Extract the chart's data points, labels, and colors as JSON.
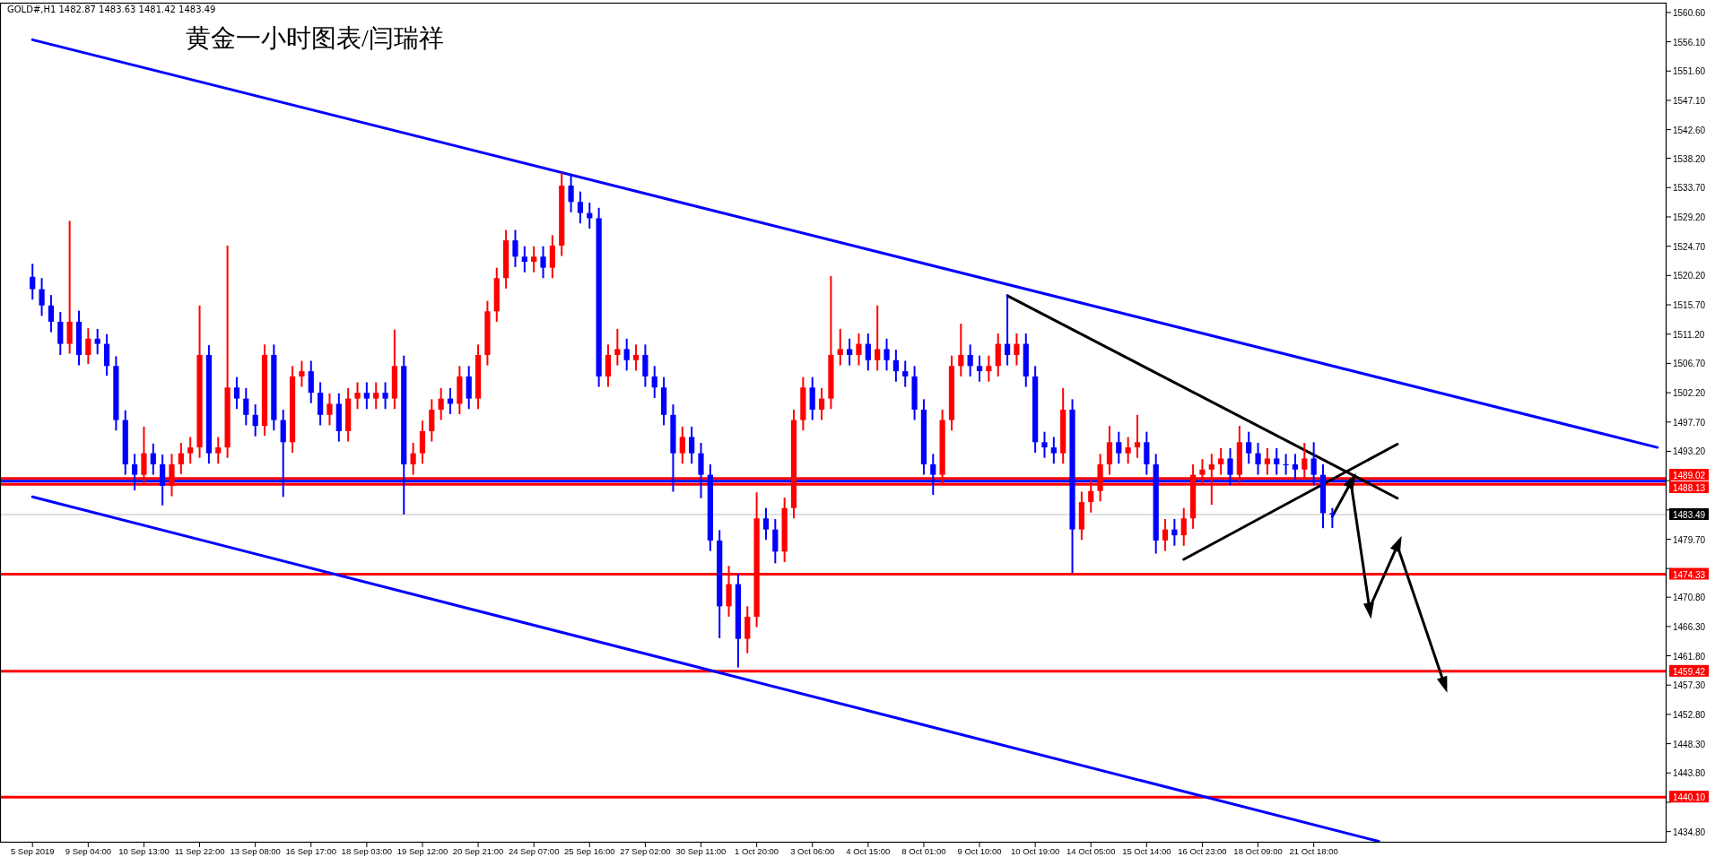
{
  "chart_data": {
    "type": "candlestick",
    "title": "黄金一小时图表/闫瑞祥",
    "annotations": [
      "GOLD#,H1  1482.87 1483.63 1481.42 1483.49"
    ],
    "categories": [
      "5 Sep 2019",
      null,
      null,
      null,
      null,
      null,
      "9 Sep 04:00",
      null,
      null,
      null,
      null,
      null,
      "10 Sep 13:00",
      null,
      null,
      null,
      null,
      null,
      "11 Sep 22:00",
      null,
      null,
      null,
      null,
      null,
      "13 Sep 08:00",
      null,
      null,
      null,
      null,
      null,
      "16 Sep 17:00",
      null,
      null,
      null,
      null,
      null,
      "18 Sep 03:00",
      null,
      null,
      null,
      null,
      null,
      "19 Sep 12:00",
      null,
      null,
      null,
      null,
      null,
      "20 Sep 21:00",
      null,
      null,
      null,
      null,
      null,
      "24 Sep 07:00",
      null,
      null,
      null,
      null,
      null,
      "25 Sep 16:00",
      null,
      null,
      null,
      null,
      null,
      "27 Sep 02:00",
      null,
      null,
      null,
      null,
      null,
      "30 Sep 11:00",
      null,
      null,
      null,
      null,
      null,
      "1 Oct 20:00",
      null,
      null,
      null,
      null,
      null,
      "3 Oct 06:00",
      null,
      null,
      null,
      null,
      null,
      "4 Oct 15:00",
      null,
      null,
      null,
      null,
      null,
      "8 Oct 01:00",
      null,
      null,
      null,
      null,
      null,
      "9 Oct 10:00",
      null,
      null,
      null,
      null,
      null,
      "10 Oct 19:00",
      null,
      null,
      null,
      null,
      null,
      "14 Oct 05:00",
      null,
      null,
      null,
      null,
      null,
      "15 Oct 14:00",
      null,
      null,
      null,
      null,
      null,
      "16 Oct 23:00",
      null,
      null,
      null,
      null,
      null,
      "18 Oct 09:00",
      null,
      null,
      null,
      null,
      null,
      "21 Oct 18:00",
      null,
      null,
      null,
      null,
      null,
      null,
      null,
      null,
      null,
      null,
      null,
      null,
      null,
      null,
      null,
      null,
      null,
      null,
      null,
      null,
      null,
      null,
      null,
      null,
      null,
      null,
      null,
      null,
      null,
      null,
      null,
      null,
      null,
      null,
      null,
      null,
      null
    ],
    "ylim": [
      1433.1,
      1562.1
    ],
    "yticks": [
      {
        "value": 1560.6,
        "label": "1560.60"
      },
      {
        "value": 1556.1,
        "label": "1556.10"
      },
      {
        "value": 1551.6,
        "label": "1551.60"
      },
      {
        "value": 1547.1,
        "label": "1547.10"
      },
      {
        "value": 1542.6,
        "label": "1542.60"
      },
      {
        "value": 1538.2,
        "label": "1538.20"
      },
      {
        "value": 1533.7,
        "label": "1533.70"
      },
      {
        "value": 1529.2,
        "label": "1529.20"
      },
      {
        "value": 1524.7,
        "label": "1524.70"
      },
      {
        "value": 1520.2,
        "label": "1520.20"
      },
      {
        "value": 1515.7,
        "label": "1515.70"
      },
      {
        "value": 1511.2,
        "label": "1511.20"
      },
      {
        "value": 1506.7,
        "label": "1506.70"
      },
      {
        "value": 1502.2,
        "label": "1502.20"
      },
      {
        "value": 1497.7,
        "label": "1497.70"
      },
      {
        "value": 1493.2,
        "label": "1493.20"
      },
      {
        "value": 1488.7,
        "label": null
      },
      {
        "value": 1484.2,
        "label": null
      },
      {
        "value": 1479.7,
        "label": "1479.70"
      },
      {
        "value": 1475.2,
        "label": null
      },
      {
        "value": 1470.8,
        "label": "1470.80"
      },
      {
        "value": 1466.3,
        "label": "1466.30"
      },
      {
        "value": 1461.8,
        "label": "1461.80"
      },
      {
        "value": 1457.3,
        "label": "1457.30"
      },
      {
        "value": 1452.8,
        "label": "1452.80"
      },
      {
        "value": 1448.3,
        "label": "1448.30"
      },
      {
        "value": 1443.8,
        "label": "1443.80"
      },
      {
        "value": 1439.3,
        "label": null
      },
      {
        "value": 1434.8,
        "label": "1434.80"
      }
    ],
    "grid": false,
    "ref_lines": [
      {
        "axis": "y",
        "value": 1489.02,
        "label": "1489.02",
        "color": "#ff0000"
      },
      {
        "axis": "y",
        "value": 1488.6,
        "color": "#0000ff"
      },
      {
        "axis": "y",
        "value": 1488.13,
        "label": "1488.13",
        "color": "#ff0000"
      },
      {
        "axis": "y",
        "value": 1483.49,
        "label": "1483.49",
        "color": "#c0c0c0"
      },
      {
        "axis": "y",
        "value": 1474.33,
        "label": "1474.33",
        "color": "#ff0000"
      },
      {
        "axis": "y",
        "value": 1459.42,
        "label": "1459.42",
        "color": "#ff0000"
      },
      {
        "axis": "y",
        "value": 1440.1,
        "label": "1440.10",
        "color": "#ff0000"
      }
    ],
    "series": [
      {
        "type": "line",
        "color": "#0000ff",
        "values": [
          1556.4,
          null,
          null,
          null,
          null,
          null,
          null,
          null,
          null,
          null,
          null,
          null,
          null,
          null,
          null,
          null,
          null,
          null,
          null,
          null,
          null,
          null,
          null,
          null,
          null,
          null,
          null,
          null,
          null,
          null,
          null,
          null,
          null,
          null,
          null,
          null,
          null,
          null,
          null,
          null,
          null,
          null,
          null,
          null,
          null,
          null,
          null,
          null,
          null,
          null,
          null,
          null,
          null,
          null,
          null,
          null,
          null,
          null,
          null,
          null,
          null,
          null,
          null,
          null,
          null,
          null,
          null,
          null,
          null,
          null,
          null,
          null,
          null,
          null,
          null,
          null,
          null,
          null,
          null,
          null,
          null,
          null,
          null,
          null,
          null,
          null,
          null,
          null,
          null,
          null,
          null,
          null,
          null,
          null,
          null,
          null,
          null,
          null,
          null,
          null,
          null,
          null,
          null,
          null,
          null,
          null,
          null,
          null,
          null,
          null,
          null,
          null,
          null,
          null,
          null,
          null,
          null,
          null,
          null,
          null,
          null,
          null,
          null,
          null,
          null,
          null,
          null,
          null,
          null,
          null,
          null,
          null,
          null,
          null,
          null,
          null,
          null,
          null,
          null,
          null,
          null,
          null,
          null,
          null,
          null,
          null,
          null,
          null,
          null,
          null,
          null,
          null,
          null,
          null,
          null,
          null,
          null,
          null,
          null,
          null,
          null,
          null,
          null,
          null,
          null,
          null,
          null,
          null,
          null,
          null,
          null,
          null,
          null,
          null,
          null,
          1493.8
        ]
      },
      {
        "type": "line",
        "color": "#0000ff",
        "values": [
          1486.2,
          null,
          null,
          null,
          null,
          null,
          null,
          null,
          null,
          null,
          null,
          null,
          null,
          null,
          null,
          null,
          null,
          null,
          null,
          null,
          null,
          null,
          null,
          null,
          null,
          null,
          null,
          null,
          null,
          null,
          null,
          null,
          null,
          null,
          null,
          null,
          null,
          null,
          null,
          null,
          null,
          null,
          null,
          null,
          null,
          null,
          null,
          null,
          null,
          null,
          null,
          null,
          null,
          null,
          null,
          null,
          null,
          null,
          null,
          null,
          null,
          null,
          null,
          null,
          null,
          null,
          null,
          null,
          null,
          null,
          null,
          null,
          null,
          null,
          null,
          null,
          null,
          null,
          null,
          null,
          null,
          null,
          null,
          null,
          null,
          null,
          null,
          null,
          null,
          null,
          null,
          null,
          null,
          null,
          null,
          null,
          null,
          null,
          null,
          null,
          null,
          null,
          null,
          null,
          null,
          null,
          null,
          null,
          null,
          null,
          null,
          null,
          null,
          null,
          null,
          null,
          null,
          null,
          null,
          null,
          null,
          null,
          null,
          null,
          null,
          null,
          null,
          null,
          null,
          null,
          null,
          null,
          null,
          null,
          null,
          null,
          null,
          null,
          null,
          null,
          null,
          null,
          null,
          null,
          null,
          1433.3,
          null,
          null,
          null,
          null,
          null,
          null,
          null,
          null,
          null,
          null,
          null,
          null,
          null,
          null,
          null,
          null,
          null,
          null,
          null,
          null,
          null,
          null,
          null,
          null,
          null,
          null,
          null,
          null,
          null,
          null
        ]
      },
      {
        "type": "line",
        "color": "#000000",
        "values": [
          null,
          null,
          null,
          null,
          null,
          null,
          null,
          null,
          null,
          null,
          null,
          null,
          null,
          null,
          null,
          null,
          null,
          null,
          null,
          null,
          null,
          null,
          null,
          null,
          null,
          null,
          null,
          null,
          null,
          null,
          null,
          null,
          null,
          null,
          null,
          null,
          null,
          null,
          null,
          null,
          null,
          null,
          null,
          null,
          null,
          null,
          null,
          null,
          null,
          null,
          null,
          null,
          null,
          null,
          null,
          null,
          null,
          null,
          null,
          null,
          null,
          null,
          null,
          null,
          null,
          null,
          null,
          null,
          null,
          null,
          null,
          null,
          null,
          null,
          null,
          null,
          null,
          null,
          null,
          null,
          null,
          null,
          null,
          null,
          null,
          null,
          null,
          null,
          null,
          null,
          null,
          null,
          null,
          null,
          null,
          null,
          null,
          null,
          null,
          null,
          null,
          null,
          null,
          null,
          null,
          1517.1,
          null,
          null,
          null,
          null,
          null,
          null,
          null,
          null,
          null,
          null,
          null,
          null,
          null,
          null,
          null,
          null,
          null,
          null,
          null,
          null,
          null,
          null,
          null,
          null,
          null,
          null,
          null,
          null,
          null,
          null,
          null,
          null,
          null,
          null,
          null,
          null,
          null,
          null,
          null,
          null,
          null,
          1486.0,
          null,
          null,
          null,
          null,
          null,
          null,
          null,
          null,
          null,
          null,
          null,
          null,
          null,
          null,
          null,
          null,
          null,
          null,
          null,
          null,
          null,
          null,
          null,
          null,
          null,
          null,
          null,
          null
        ]
      },
      {
        "type": "line",
        "color": "#000000",
        "values": [
          null,
          null,
          null,
          null,
          null,
          null,
          null,
          null,
          null,
          null,
          null,
          null,
          null,
          null,
          null,
          null,
          null,
          null,
          null,
          null,
          null,
          null,
          null,
          null,
          null,
          null,
          null,
          null,
          null,
          null,
          null,
          null,
          null,
          null,
          null,
          null,
          null,
          null,
          null,
          null,
          null,
          null,
          null,
          null,
          null,
          null,
          null,
          null,
          null,
          null,
          null,
          null,
          null,
          null,
          null,
          null,
          null,
          null,
          null,
          null,
          null,
          null,
          null,
          null,
          null,
          null,
          null,
          null,
          null,
          null,
          null,
          null,
          null,
          null,
          null,
          null,
          null,
          null,
          null,
          null,
          null,
          null,
          null,
          null,
          null,
          null,
          null,
          null,
          null,
          null,
          null,
          null,
          null,
          null,
          null,
          null,
          null,
          null,
          null,
          null,
          null,
          null,
          null,
          null,
          null,
          null,
          null,
          null,
          null,
          null,
          null,
          null,
          null,
          null,
          null,
          null,
          null,
          null,
          null,
          null,
          null,
          null,
          null,
          null,
          1476.6,
          null,
          null,
          null,
          null,
          null,
          null,
          null,
          null,
          null,
          null,
          null,
          null,
          null,
          null,
          null,
          null,
          null,
          null,
          null,
          null,
          null,
          null,
          1494.3,
          null,
          null,
          null,
          null,
          null,
          null,
          null,
          null,
          null,
          null,
          null,
          null,
          null,
          null,
          null,
          null,
          null,
          null,
          null,
          null,
          null,
          null,
          null,
          null,
          null,
          null,
          null,
          null
        ]
      },
      {
        "type": "line",
        "color": "#000000",
        "marker": "triangle",
        "values": [
          null,
          null,
          null,
          null,
          null,
          null,
          null,
          null,
          null,
          null,
          null,
          null,
          null,
          null,
          null,
          null,
          null,
          null,
          null,
          null,
          null,
          null,
          null,
          null,
          null,
          null,
          null,
          null,
          null,
          null,
          null,
          null,
          null,
          null,
          null,
          null,
          null,
          null,
          null,
          null,
          null,
          null,
          null,
          null,
          null,
          null,
          null,
          null,
          null,
          null,
          null,
          null,
          null,
          null,
          null,
          null,
          null,
          null,
          null,
          null,
          null,
          null,
          null,
          null,
          null,
          null,
          null,
          null,
          null,
          null,
          null,
          null,
          null,
          null,
          null,
          null,
          null,
          null,
          null,
          null,
          null,
          null,
          null,
          null,
          null,
          null,
          null,
          null,
          null,
          null,
          null,
          null,
          null,
          null,
          null,
          null,
          null,
          null,
          null,
          null,
          null,
          null,
          null,
          null,
          null,
          null,
          null,
          null,
          null,
          null,
          null,
          null,
          null,
          null,
          null,
          null,
          null,
          null,
          null,
          null,
          null,
          null,
          null,
          null,
          null,
          null,
          null,
          null,
          null,
          null,
          null,
          null,
          null,
          null,
          null,
          null,
          null,
          null,
          null,
          null,
          1483.2,
          null,
          1488.4,
          null,
          1469.1,
          null,
          null,
          1478.7,
          null,
          null,
          null,
          null,
          1457.7,
          null,
          null,
          null,
          null,
          null,
          null,
          null,
          null,
          null,
          null,
          null,
          null,
          null,
          null,
          null,
          null,
          null,
          null,
          null,
          null,
          null,
          null,
          null
        ]
      }
    ],
    "ohlc": [
      [
        1520.0,
        1522.0,
        1516.5,
        1518.1
      ],
      [
        1518.1,
        1519.8,
        1514.0,
        1515.6
      ],
      [
        1515.6,
        1517.2,
        1511.5,
        1513.1
      ],
      [
        1513.1,
        1514.6,
        1508.0,
        1509.7
      ],
      [
        1509.7,
        1528.6,
        1508.2,
        1513.1
      ],
      [
        1513.1,
        1514.8,
        1506.4,
        1508.0
      ],
      [
        1508.0,
        1512.1,
        1506.6,
        1510.5
      ],
      [
        1510.5,
        1512.0,
        1508.1,
        1509.7
      ],
      [
        1509.7,
        1511.2,
        1504.8,
        1506.3
      ],
      [
        1506.3,
        1507.8,
        1496.4,
        1498.0
      ],
      [
        1498.0,
        1499.5,
        1489.6,
        1491.2
      ],
      [
        1491.2,
        1492.8,
        1487.2,
        1489.6
      ],
      [
        1489.6,
        1497.0,
        1488.0,
        1492.9
      ],
      [
        1492.9,
        1494.4,
        1489.6,
        1491.2
      ],
      [
        1491.2,
        1492.7,
        1484.9,
        1487.9
      ],
      [
        1487.9,
        1492.8,
        1486.3,
        1491.2
      ],
      [
        1491.2,
        1494.5,
        1489.7,
        1492.9
      ],
      [
        1492.9,
        1495.4,
        1491.3,
        1493.8
      ],
      [
        1493.8,
        1515.6,
        1492.2,
        1508.0
      ],
      [
        1508.0,
        1509.5,
        1491.3,
        1492.9
      ],
      [
        1492.9,
        1495.4,
        1491.3,
        1493.8
      ],
      [
        1493.8,
        1524.8,
        1492.2,
        1503.0
      ],
      [
        1503.0,
        1504.6,
        1499.7,
        1501.3
      ],
      [
        1501.3,
        1502.9,
        1497.2,
        1498.8
      ],
      [
        1498.8,
        1500.4,
        1495.5,
        1497.1
      ],
      [
        1497.1,
        1509.6,
        1495.6,
        1508.0
      ],
      [
        1508.0,
        1509.6,
        1496.4,
        1498.0
      ],
      [
        1498.0,
        1499.6,
        1486.2,
        1494.6
      ],
      [
        1494.6,
        1506.3,
        1493.0,
        1504.7
      ],
      [
        1504.7,
        1507.1,
        1503.1,
        1505.5
      ],
      [
        1505.5,
        1507.1,
        1500.6,
        1502.2
      ],
      [
        1502.2,
        1503.8,
        1497.2,
        1498.8
      ],
      [
        1498.8,
        1502.1,
        1497.2,
        1500.5
      ],
      [
        1500.5,
        1502.1,
        1494.7,
        1496.3
      ],
      [
        1496.3,
        1502.9,
        1494.7,
        1501.3
      ],
      [
        1501.3,
        1503.8,
        1499.7,
        1502.2
      ],
      [
        1502.2,
        1503.8,
        1499.7,
        1501.3
      ],
      [
        1501.3,
        1503.8,
        1499.7,
        1502.2
      ],
      [
        1502.2,
        1503.8,
        1499.7,
        1501.3
      ],
      [
        1501.3,
        1511.9,
        1499.7,
        1506.3
      ],
      [
        1506.3,
        1507.9,
        1483.5,
        1491.2
      ],
      [
        1491.2,
        1494.5,
        1489.6,
        1492.9
      ],
      [
        1492.9,
        1497.9,
        1491.3,
        1496.3
      ],
      [
        1496.3,
        1501.2,
        1494.7,
        1499.6
      ],
      [
        1499.6,
        1502.9,
        1498.0,
        1501.3
      ],
      [
        1501.3,
        1502.9,
        1498.9,
        1500.5
      ],
      [
        1500.5,
        1506.3,
        1498.9,
        1504.7
      ],
      [
        1504.7,
        1506.3,
        1499.7,
        1501.3
      ],
      [
        1501.3,
        1509.6,
        1499.7,
        1508.0
      ],
      [
        1508.0,
        1516.3,
        1506.4,
        1514.7
      ],
      [
        1514.7,
        1521.4,
        1513.1,
        1519.8
      ],
      [
        1519.8,
        1527.2,
        1518.2,
        1525.6
      ],
      [
        1525.6,
        1527.2,
        1521.5,
        1523.1
      ],
      [
        1523.1,
        1524.7,
        1520.7,
        1522.3
      ],
      [
        1522.3,
        1524.7,
        1520.7,
        1523.1
      ],
      [
        1523.1,
        1524.7,
        1519.8,
        1521.4
      ],
      [
        1521.4,
        1526.4,
        1519.8,
        1524.8
      ],
      [
        1524.8,
        1536.0,
        1523.2,
        1534.0
      ],
      [
        1534.0,
        1535.6,
        1529.9,
        1531.5
      ],
      [
        1531.5,
        1533.1,
        1528.2,
        1529.8
      ],
      [
        1529.8,
        1531.4,
        1527.4,
        1529.0
      ],
      [
        1529.0,
        1530.6,
        1503.1,
        1504.7
      ],
      [
        1504.7,
        1509.6,
        1503.1,
        1508.0
      ],
      [
        1508.0,
        1512.0,
        1506.4,
        1508.9
      ],
      [
        1508.9,
        1510.5,
        1505.6,
        1507.2
      ],
      [
        1507.2,
        1509.6,
        1505.6,
        1508.0
      ],
      [
        1508.0,
        1509.6,
        1503.1,
        1504.7
      ],
      [
        1504.7,
        1506.3,
        1501.4,
        1503.0
      ],
      [
        1503.0,
        1504.6,
        1497.2,
        1498.8
      ],
      [
        1498.8,
        1500.4,
        1487.0,
        1492.9
      ],
      [
        1492.9,
        1497.0,
        1491.3,
        1495.4
      ],
      [
        1495.4,
        1497.0,
        1491.3,
        1492.9
      ],
      [
        1492.9,
        1494.5,
        1486.0,
        1489.6
      ],
      [
        1489.6,
        1491.2,
        1477.9,
        1479.5
      ],
      [
        1479.5,
        1481.1,
        1464.5,
        1469.4
      ],
      [
        1469.4,
        1475.6,
        1467.8,
        1472.8
      ],
      [
        1472.8,
        1474.4,
        1460.0,
        1464.4
      ],
      [
        1464.4,
        1469.4,
        1462.2,
        1467.8
      ],
      [
        1467.8,
        1486.9,
        1466.2,
        1482.9
      ],
      [
        1482.9,
        1484.5,
        1479.6,
        1481.2
      ],
      [
        1481.2,
        1482.8,
        1476.0,
        1477.8
      ],
      [
        1477.8,
        1486.1,
        1476.2,
        1484.5
      ],
      [
        1484.5,
        1499.6,
        1482.9,
        1498.0
      ],
      [
        1498.0,
        1504.6,
        1496.4,
        1503.0
      ],
      [
        1503.0,
        1504.6,
        1498.0,
        1499.6
      ],
      [
        1499.6,
        1502.9,
        1498.0,
        1501.3
      ],
      [
        1501.3,
        1520.1,
        1499.7,
        1508.0
      ],
      [
        1508.0,
        1512.0,
        1506.4,
        1508.9
      ],
      [
        1508.9,
        1510.5,
        1506.4,
        1508.0
      ],
      [
        1508.0,
        1511.3,
        1506.4,
        1509.7
      ],
      [
        1509.7,
        1511.3,
        1505.6,
        1507.2
      ],
      [
        1507.2,
        1515.6,
        1505.6,
        1508.9
      ],
      [
        1508.9,
        1510.5,
        1505.6,
        1507.2
      ],
      [
        1507.2,
        1508.8,
        1503.9,
        1505.5
      ],
      [
        1505.5,
        1507.1,
        1503.1,
        1504.7
      ],
      [
        1504.7,
        1506.3,
        1498.0,
        1499.6
      ],
      [
        1499.6,
        1501.2,
        1489.6,
        1491.2
      ],
      [
        1491.2,
        1492.8,
        1486.5,
        1489.6
      ],
      [
        1489.6,
        1499.6,
        1488.0,
        1498.0
      ],
      [
        1498.0,
        1507.9,
        1496.4,
        1506.3
      ],
      [
        1506.3,
        1512.8,
        1504.7,
        1508.0
      ],
      [
        1508.0,
        1509.6,
        1504.7,
        1506.3
      ],
      [
        1506.3,
        1507.9,
        1503.9,
        1505.5
      ],
      [
        1505.5,
        1507.9,
        1503.9,
        1506.3
      ],
      [
        1506.3,
        1511.3,
        1504.7,
        1509.7
      ],
      [
        1509.7,
        1517.3,
        1506.4,
        1508.0
      ],
      [
        1508.0,
        1511.3,
        1506.4,
        1509.7
      ],
      [
        1509.7,
        1511.3,
        1503.1,
        1504.7
      ],
      [
        1504.7,
        1506.3,
        1493.0,
        1494.6
      ],
      [
        1494.6,
        1496.2,
        1492.2,
        1493.8
      ],
      [
        1493.8,
        1495.4,
        1491.3,
        1492.9
      ],
      [
        1492.9,
        1502.9,
        1491.3,
        1499.6
      ],
      [
        1499.6,
        1501.2,
        1474.5,
        1481.2
      ],
      [
        1481.2,
        1487.0,
        1479.6,
        1485.4
      ],
      [
        1485.4,
        1488.7,
        1483.8,
        1487.1
      ],
      [
        1487.1,
        1492.8,
        1485.5,
        1491.2
      ],
      [
        1491.2,
        1497.1,
        1489.6,
        1494.6
      ],
      [
        1494.6,
        1496.2,
        1491.3,
        1492.9
      ],
      [
        1492.9,
        1495.4,
        1491.3,
        1493.8
      ],
      [
        1493.8,
        1498.8,
        1492.2,
        1494.6
      ],
      [
        1494.6,
        1496.2,
        1489.6,
        1491.2
      ],
      [
        1491.2,
        1492.8,
        1477.5,
        1479.5
      ],
      [
        1479.5,
        1482.8,
        1477.9,
        1481.2
      ],
      [
        1481.2,
        1482.8,
        1478.7,
        1480.3
      ],
      [
        1480.3,
        1484.5,
        1478.7,
        1482.9
      ],
      [
        1482.9,
        1491.2,
        1481.3,
        1489.6
      ],
      [
        1489.6,
        1492.0,
        1488.0,
        1490.4
      ],
      [
        1490.4,
        1492.8,
        1485.0,
        1491.2
      ],
      [
        1491.2,
        1493.7,
        1489.6,
        1492.1
      ],
      [
        1492.1,
        1493.7,
        1488.0,
        1489.6
      ],
      [
        1489.6,
        1497.1,
        1488.0,
        1494.6
      ],
      [
        1494.6,
        1496.2,
        1491.3,
        1492.9
      ],
      [
        1492.9,
        1494.5,
        1489.6,
        1491.2
      ],
      [
        1491.2,
        1493.7,
        1489.6,
        1492.1
      ],
      [
        1492.1,
        1493.7,
        1489.6,
        1491.2
      ],
      [
        1491.2,
        1492.8,
        1489.6,
        1491.2
      ],
      [
        1491.2,
        1492.8,
        1488.8,
        1490.4
      ],
      [
        1490.4,
        1494.5,
        1488.8,
        1492.1
      ],
      [
        1492.1,
        1494.6,
        1488.0,
        1489.6
      ],
      [
        1489.6,
        1491.2,
        1481.4,
        1483.7
      ],
      [
        1483.7,
        1484.5,
        1481.42,
        1483.49
      ],
      null,
      null,
      null,
      null,
      null,
      null,
      null,
      null,
      null,
      null,
      null,
      null,
      null,
      null,
      null,
      null,
      null,
      null,
      null,
      null,
      null,
      null,
      null,
      null,
      null,
      null,
      null,
      null,
      null,
      null,
      null,
      null,
      null,
      null,
      null
    ],
    "colors": [
      "#0000ff",
      "#0000ff",
      "#0000ff",
      "#0000ff",
      "#ff0000",
      "#0000ff",
      "#ff0000",
      "#0000ff",
      "#0000ff",
      "#0000ff",
      "#0000ff",
      "#0000ff",
      "#ff0000",
      "#0000ff",
      "#0000ff",
      "#ff0000",
      "#ff0000",
      "#ff0000",
      "#ff0000",
      "#0000ff",
      "#ff0000",
      "#ff0000",
      "#0000ff",
      "#0000ff",
      "#0000ff",
      "#ff0000",
      "#0000ff",
      "#0000ff",
      "#ff0000",
      "#ff0000",
      "#0000ff",
      "#0000ff",
      "#ff0000",
      "#0000ff",
      "#ff0000",
      "#ff0000",
      "#0000ff",
      "#ff0000",
      "#0000ff",
      "#ff0000",
      "#0000ff",
      "#ff0000",
      "#ff0000",
      "#ff0000",
      "#ff0000",
      "#0000ff",
      "#ff0000",
      "#0000ff",
      "#ff0000",
      "#ff0000",
      "#ff0000",
      "#ff0000",
      "#0000ff",
      "#0000ff",
      "#ff0000",
      "#0000ff",
      "#ff0000",
      "#ff0000",
      "#0000ff",
      "#0000ff",
      "#0000ff",
      "#0000ff",
      "#ff0000",
      "#ff0000",
      "#0000ff",
      "#ff0000",
      "#0000ff",
      "#0000ff",
      "#0000ff",
      "#0000ff",
      "#ff0000",
      "#0000ff",
      "#0000ff",
      "#0000ff",
      "#0000ff",
      "#ff0000",
      "#0000ff",
      "#ff0000",
      "#ff0000",
      "#0000ff",
      "#0000ff",
      "#ff0000",
      "#ff0000",
      "#ff0000",
      "#0000ff",
      "#ff0000",
      "#ff0000",
      "#ff0000",
      "#0000ff",
      "#ff0000",
      "#0000ff",
      "#ff0000",
      "#0000ff",
      "#0000ff",
      "#0000ff",
      "#0000ff",
      "#0000ff",
      "#0000ff",
      "#ff0000",
      "#ff0000",
      "#ff0000",
      "#0000ff",
      "#0000ff",
      "#ff0000",
      "#ff0000",
      "#0000ff",
      "#ff0000",
      "#0000ff",
      "#0000ff",
      "#0000ff",
      "#0000ff",
      "#ff0000",
      "#0000ff",
      "#ff0000",
      "#ff0000",
      "#ff0000",
      "#ff0000",
      "#0000ff",
      "#ff0000",
      "#ff0000",
      "#0000ff",
      "#0000ff",
      "#ff0000",
      "#0000ff",
      "#ff0000",
      "#ff0000",
      "#ff0000",
      "#ff0000",
      "#ff0000",
      "#0000ff",
      "#ff0000",
      "#0000ff",
      "#0000ff",
      "#ff0000",
      "#0000ff",
      "#0000ff",
      "#0000ff",
      "#ff0000",
      "#0000ff",
      "#0000ff",
      "#0000ff",
      null,
      null,
      null,
      null,
      null,
      null,
      null,
      null,
      null,
      null,
      null,
      null,
      null,
      null,
      null,
      null,
      null,
      null,
      null,
      null,
      null,
      null,
      null,
      null,
      null,
      null,
      null,
      null,
      null,
      null,
      null,
      null,
      null,
      null,
      null
    ]
  }
}
